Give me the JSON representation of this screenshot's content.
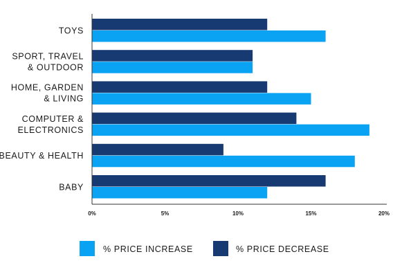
{
  "chart_data": {
    "type": "bar",
    "orientation": "horizontal",
    "categories": [
      "TOYS",
      "SPORT, TRAVEL\n& OUTDOOR",
      "HOME, GARDEN\n& LIVING",
      "COMPUTER &\nELECTRONICS",
      "BEAUTY & HEALTH",
      "BABY"
    ],
    "series": [
      {
        "name": "% PRICE DECREASE",
        "color": "#173a72",
        "values": [
          12,
          11,
          12,
          14,
          9,
          16
        ]
      },
      {
        "name": "% PRICE INCREASE",
        "color": "#0aa3f4",
        "values": [
          16,
          11,
          15,
          19,
          18,
          12
        ]
      }
    ],
    "xlim": [
      0,
      20
    ],
    "xticks": [
      0,
      5,
      10,
      15,
      20
    ],
    "tick_suffix": "%",
    "grid": false,
    "legend": {
      "placement": "bottom",
      "order": [
        "% PRICE INCREASE",
        "% PRICE DECREASE"
      ]
    },
    "title": "",
    "xlabel": "",
    "ylabel": ""
  }
}
